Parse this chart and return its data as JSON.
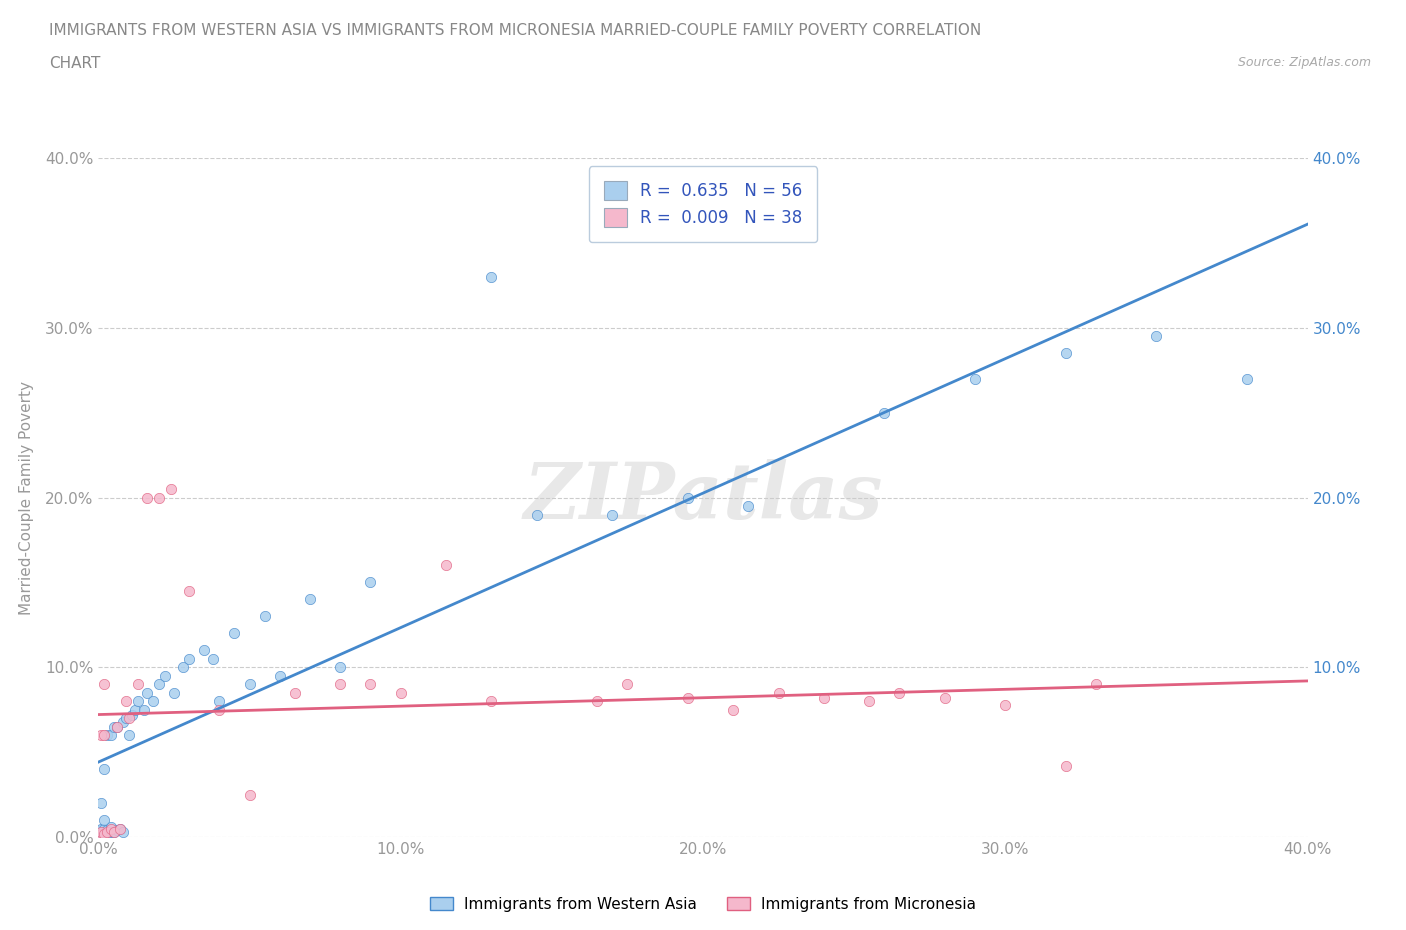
{
  "title_line1": "IMMIGRANTS FROM WESTERN ASIA VS IMMIGRANTS FROM MICRONESIA MARRIED-COUPLE FAMILY POVERTY CORRELATION",
  "title_line2": "CHART",
  "source": "Source: ZipAtlas.com",
  "ylabel": "Married-Couple Family Poverty",
  "xmin": 0.0,
  "xmax": 0.4,
  "ymin": 0.0,
  "ymax": 0.4,
  "ytick_values": [
    0.0,
    0.1,
    0.2,
    0.3,
    0.4
  ],
  "ytick_labels_left": [
    "0.0%",
    "10.0%",
    "20.0%",
    "30.0%",
    "40.0%"
  ],
  "ytick_labels_right": [
    "",
    "10.0%",
    "20.0%",
    "30.0%",
    "40.0%"
  ],
  "xtick_values": [
    0.0,
    0.1,
    0.2,
    0.3,
    0.4
  ],
  "xtick_labels": [
    "0.0%",
    "10.0%",
    "20.0%",
    "30.0%",
    "40.0%"
  ],
  "r_western_asia": 0.635,
  "n_western_asia": 56,
  "r_micronesia": 0.009,
  "n_micronesia": 38,
  "color_western_asia": "#aacfee",
  "color_micronesia": "#f5b8cc",
  "line_color_western_asia": "#4488cc",
  "line_color_micronesia": "#e06080",
  "legend_text_color": "#3355bb",
  "axis_text_color": "#999999",
  "title_color": "#888888",
  "wa_x": [
    0.001,
    0.001,
    0.001,
    0.001,
    0.001,
    0.002,
    0.002,
    0.002,
    0.002,
    0.002,
    0.003,
    0.003,
    0.003,
    0.004,
    0.004,
    0.004,
    0.005,
    0.005,
    0.006,
    0.006,
    0.007,
    0.008,
    0.008,
    0.009,
    0.01,
    0.011,
    0.012,
    0.013,
    0.015,
    0.016,
    0.018,
    0.02,
    0.022,
    0.025,
    0.028,
    0.03,
    0.035,
    0.038,
    0.04,
    0.045,
    0.05,
    0.055,
    0.06,
    0.07,
    0.08,
    0.09,
    0.13,
    0.145,
    0.17,
    0.195,
    0.215,
    0.26,
    0.29,
    0.32,
    0.35,
    0.38
  ],
  "wa_y": [
    0.002,
    0.003,
    0.004,
    0.005,
    0.02,
    0.002,
    0.003,
    0.005,
    0.01,
    0.04,
    0.002,
    0.004,
    0.06,
    0.003,
    0.006,
    0.06,
    0.003,
    0.065,
    0.004,
    0.065,
    0.005,
    0.003,
    0.068,
    0.07,
    0.06,
    0.072,
    0.075,
    0.08,
    0.075,
    0.085,
    0.08,
    0.09,
    0.095,
    0.085,
    0.1,
    0.105,
    0.11,
    0.105,
    0.08,
    0.12,
    0.09,
    0.13,
    0.095,
    0.14,
    0.1,
    0.15,
    0.33,
    0.19,
    0.19,
    0.2,
    0.195,
    0.25,
    0.27,
    0.285,
    0.295,
    0.27
  ],
  "mc_x": [
    0.001,
    0.001,
    0.001,
    0.002,
    0.002,
    0.002,
    0.003,
    0.004,
    0.005,
    0.006,
    0.007,
    0.009,
    0.01,
    0.013,
    0.016,
    0.02,
    0.024,
    0.03,
    0.04,
    0.05,
    0.065,
    0.08,
    0.09,
    0.1,
    0.115,
    0.13,
    0.165,
    0.175,
    0.195,
    0.21,
    0.225,
    0.24,
    0.255,
    0.265,
    0.28,
    0.3,
    0.32,
    0.33
  ],
  "mc_y": [
    0.002,
    0.003,
    0.06,
    0.002,
    0.06,
    0.09,
    0.003,
    0.005,
    0.003,
    0.065,
    0.005,
    0.08,
    0.07,
    0.09,
    0.2,
    0.2,
    0.205,
    0.145,
    0.075,
    0.025,
    0.085,
    0.09,
    0.09,
    0.085,
    0.16,
    0.08,
    0.08,
    0.09,
    0.082,
    0.075,
    0.085,
    0.082,
    0.08,
    0.085,
    0.082,
    0.078,
    0.042,
    0.09
  ]
}
